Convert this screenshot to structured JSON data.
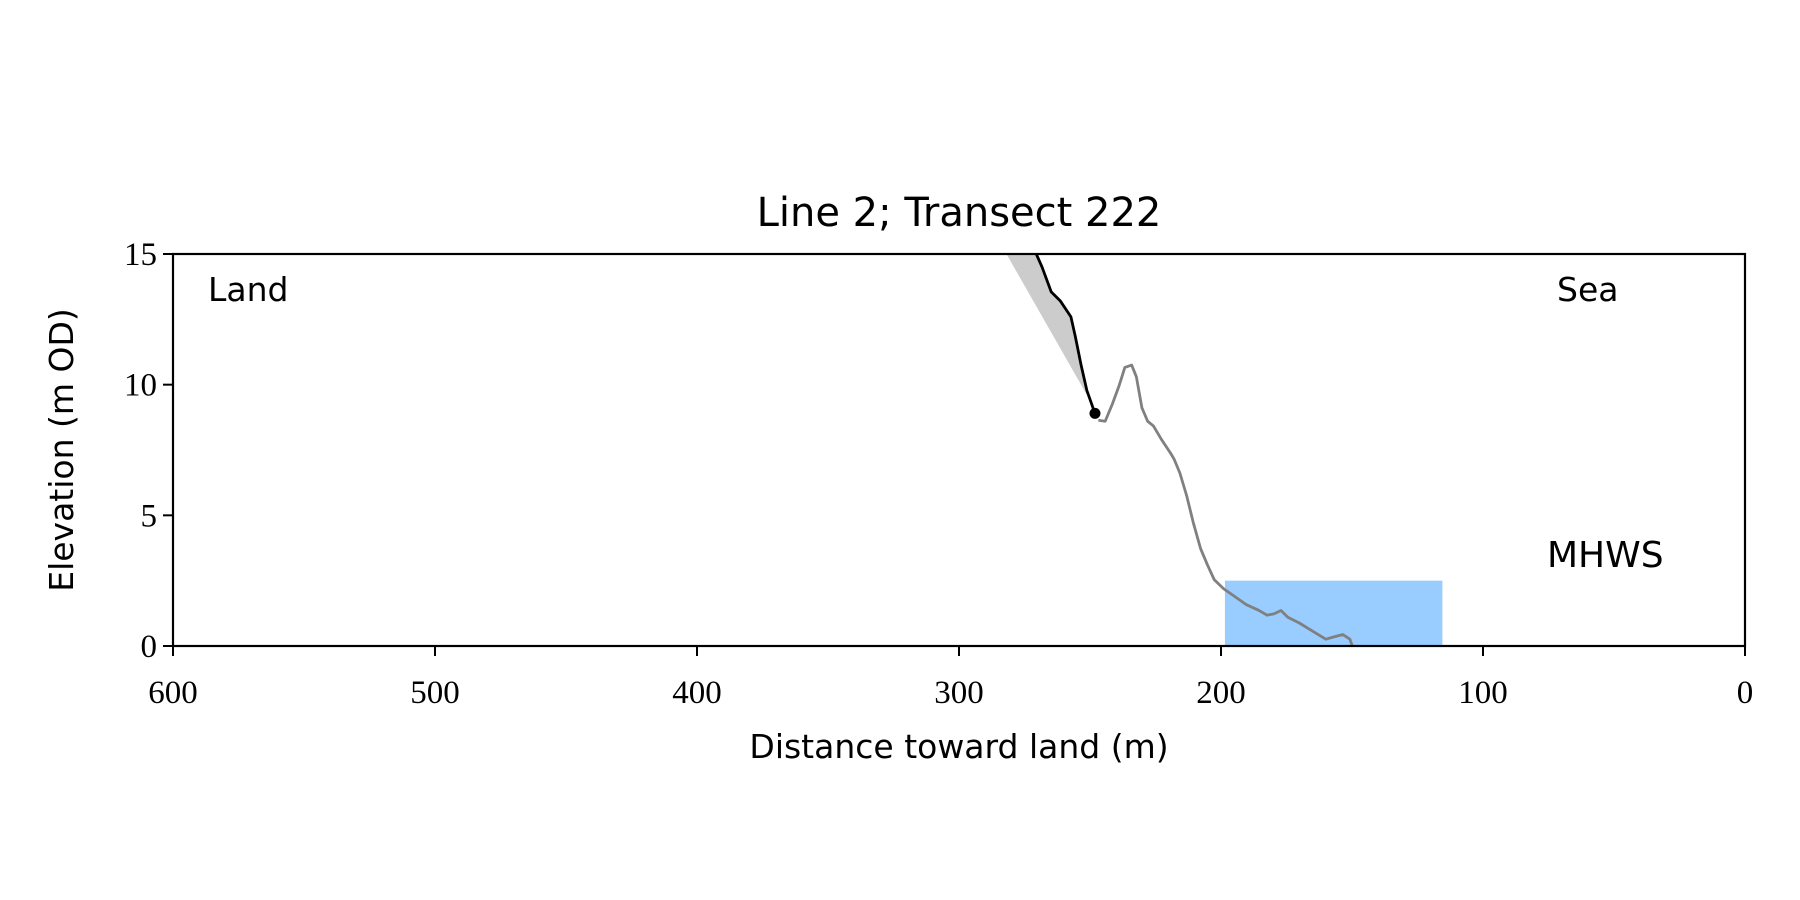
{
  "chart_data": {
    "type": "line",
    "title": "Line 2; Transect 222",
    "x_label": "Distance toward land (m)",
    "y_label": "Elevation (m OD)",
    "annotations": {
      "land": "Land",
      "sea": "Sea"
    },
    "xlim": [
      600,
      0
    ],
    "ylim": [
      0,
      15
    ],
    "xticks": [
      600,
      500,
      400,
      300,
      200,
      100,
      0
    ],
    "yticks": [
      0,
      5,
      10,
      15
    ],
    "profile": {
      "color": "#808080",
      "x": [
        246.8,
        244.2,
        241.5,
        238.9,
        236.7,
        234.1,
        232.3,
        230.2,
        228,
        225.8,
        222.7,
        219.2,
        217.9,
        215.7,
        213.1,
        210.5,
        207.8,
        205.2,
        202.6,
        199,
        194.7,
        190.3,
        185.5,
        182.4,
        179.8,
        177.1,
        174.5,
        170.1,
        164.4,
        160,
        156.9,
        153.5,
        150.8,
        149.9
      ],
      "y": [
        8.64,
        8.6,
        9.25,
        9.96,
        10.66,
        10.75,
        10.3,
        9.12,
        8.6,
        8.42,
        7.9,
        7.37,
        7.15,
        6.62,
        5.75,
        4.69,
        3.73,
        3.11,
        2.54,
        2.19,
        1.89,
        1.58,
        1.36,
        1.18,
        1.23,
        1.36,
        1.1,
        0.88,
        0.53,
        0.26,
        0.35,
        0.44,
        0.26,
        0
      ]
    },
    "cliff": {
      "color": "#000000",
      "x": [
        270.5,
        268.3,
        264.8,
        261.3,
        257.3,
        255.6,
        253.4,
        251.2,
        248.1
      ],
      "y": [
        15,
        14.5,
        13.55,
        13.2,
        12.6,
        11.84,
        10.75,
        9.78,
        8.9
      ]
    },
    "cliff_toe": {
      "x": 248.1,
      "y": 8.9,
      "color": "#000000"
    },
    "eroded": {
      "color": "#cccccc",
      "x": [
        281.9,
        270.5,
        268.3,
        264.8,
        261.3,
        257.3,
        255.6,
        253.4,
        251.2,
        250
      ],
      "y": [
        15,
        15,
        14.5,
        13.55,
        13.2,
        12.6,
        11.84,
        10.75,
        9.78,
        9.4
      ]
    },
    "mhws": {
      "label": "MHWS",
      "label_color": "#6699cc",
      "color": "#99ccff",
      "x": [
        198.5,
        115.5
      ],
      "y": [
        0,
        2.5
      ]
    }
  }
}
